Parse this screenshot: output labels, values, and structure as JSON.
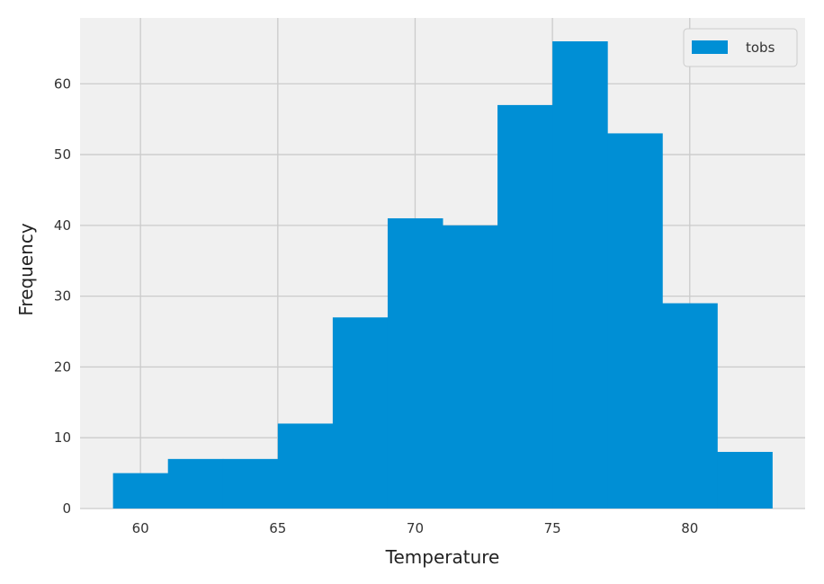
{
  "chart_data": {
    "type": "bar",
    "subtype": "histogram",
    "xlabel": "Temperature",
    "ylabel": "Frequency",
    "xlim": [
      57.8,
      84.2
    ],
    "ylim": [
      0,
      69.3
    ],
    "x_ticks": [
      60,
      65,
      70,
      75,
      80
    ],
    "y_ticks": [
      0,
      10,
      20,
      30,
      40,
      50,
      60
    ],
    "grid": true,
    "legend_position": "top-right",
    "bin_edges": [
      59,
      61,
      63,
      65,
      67,
      69,
      71,
      73,
      75,
      77,
      79,
      81,
      83
    ],
    "series": [
      {
        "name": "tobs",
        "values": [
          5,
          7,
          7,
          12,
          27,
          41,
          40,
          57,
          66,
          53,
          29,
          8
        ],
        "color": "#008fd5"
      }
    ],
    "plot_background": "#f0f0f0",
    "grid_color": "#cbcbcb"
  }
}
